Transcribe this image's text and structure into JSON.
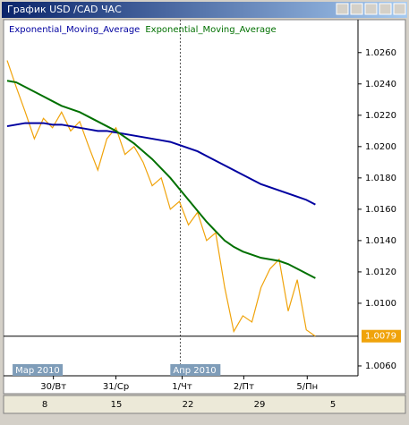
{
  "window_title": "График USD /CAD  ЧАС",
  "chart_data": {
    "type": "line",
    "x": [
      0,
      1,
      2,
      3,
      4,
      5,
      6,
      7,
      8,
      9,
      10,
      11,
      12,
      13,
      14,
      15,
      16,
      17,
      18,
      19,
      20,
      21,
      22,
      23,
      24,
      25,
      26,
      27,
      28,
      29,
      30,
      31,
      32,
      33,
      34
    ],
    "series": [
      {
        "color": "#f0a30a",
        "values": [
          1.0255,
          1.0238,
          1.0222,
          1.0205,
          1.0218,
          1.0212,
          1.0222,
          1.021,
          1.0216,
          1.02,
          1.0185,
          1.0205,
          1.0212,
          1.0195,
          1.02,
          1.019,
          1.0175,
          1.018,
          1.016,
          1.0165,
          1.015,
          1.0158,
          1.014,
          1.0145,
          1.011,
          1.0082,
          1.0092,
          1.0088,
          1.011,
          1.0122,
          1.0128,
          1.0095,
          1.0115,
          1.0083,
          1.0079
        ]
      },
      {
        "name": "Exponential_Moving_Average",
        "color": "#0000a0",
        "values": [
          1.0213,
          1.0214,
          1.0215,
          1.0215,
          1.0215,
          1.0214,
          1.0214,
          1.0213,
          1.0212,
          1.0211,
          1.021,
          1.021,
          1.0209,
          1.0208,
          1.0207,
          1.0206,
          1.0205,
          1.0204,
          1.0203,
          1.0201,
          1.0199,
          1.0197,
          1.0194,
          1.0191,
          1.0188,
          1.0185,
          1.0182,
          1.0179,
          1.0176,
          1.0174,
          1.0172,
          1.017,
          1.0168,
          1.0166,
          1.0163
        ]
      },
      {
        "name": "Exponential_Moving_Average",
        "color": "#007000",
        "values": [
          1.0242,
          1.0241,
          1.0238,
          1.0235,
          1.0232,
          1.0229,
          1.0226,
          1.0224,
          1.0222,
          1.0219,
          1.0216,
          1.0213,
          1.021,
          1.0206,
          1.0202,
          1.0197,
          1.0192,
          1.0186,
          1.018,
          1.0173,
          1.0166,
          1.0159,
          1.0152,
          1.0146,
          1.014,
          1.0136,
          1.0133,
          1.0131,
          1.0129,
          1.0128,
          1.0127,
          1.0125,
          1.0122,
          1.0119,
          1.0116
        ]
      }
    ],
    "xlim": [
      0,
      38.7
    ],
    "ylim": [
      1.00537,
      1.0281
    ],
    "yticks": [
      {
        "value": 1.006,
        "label": "1.0060"
      },
      {
        "value": 1.01,
        "label": "1.0100"
      },
      {
        "value": 1.012,
        "label": "1.0120"
      },
      {
        "value": 1.014,
        "label": "1.0140"
      },
      {
        "value": 1.016,
        "label": "1.0160"
      },
      {
        "value": 1.018,
        "label": "1.0180"
      },
      {
        "value": 1.02,
        "label": "1.0200"
      },
      {
        "value": 1.022,
        "label": "1.0220"
      },
      {
        "value": 1.024,
        "label": "1.0240"
      },
      {
        "value": 1.026,
        "label": "1.0260"
      }
    ],
    "xticks": [
      {
        "value": 5.1,
        "label": "30/Вт"
      },
      {
        "value": 12,
        "label": "31/Ср"
      },
      {
        "value": 19.3,
        "label": "1/Чт"
      },
      {
        "value": 26.1,
        "label": "2/Пт"
      },
      {
        "value": 33.1,
        "label": "5/Пн"
      }
    ],
    "period_labels": [
      {
        "value": 0.6,
        "label": "Мар 2010"
      },
      {
        "value": 18,
        "label": "Апр 2010"
      }
    ],
    "separator_x": 19.1,
    "last_price": 1.0079
  },
  "scroll_labels": [
    "8",
    "15",
    "22",
    "29",
    "5"
  ]
}
